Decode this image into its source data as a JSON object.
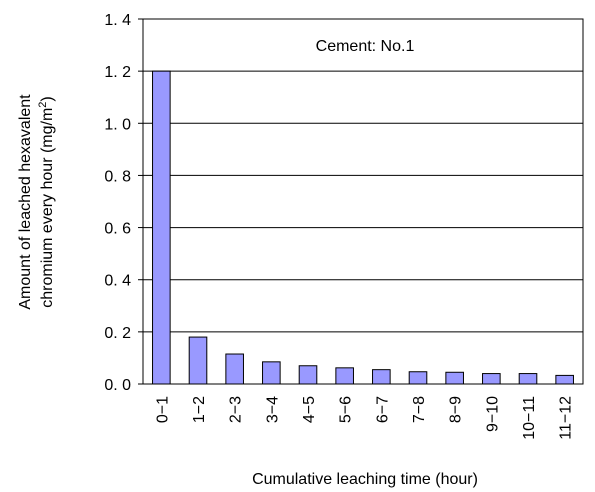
{
  "chart_data": {
    "type": "bar",
    "annotation": "Cement: No.1",
    "xlabel": "Cumulative leaching time (hour)",
    "ylabel_line1": "Amount of leached hexavalent",
    "ylabel_line2": "chromium   every hour (mg/m",
    "ylabel_sup": "2",
    "ylabel_end": ")",
    "categories": [
      "0−1",
      "1−2",
      "2−3",
      "3−4",
      "4−5",
      "5−6",
      "6−7",
      "7−8",
      "8−9",
      "9−10",
      "10−11",
      "11−12"
    ],
    "values": [
      1.2,
      0.18,
      0.115,
      0.085,
      0.07,
      0.062,
      0.055,
      0.047,
      0.045,
      0.04,
      0.04,
      0.033
    ],
    "color": "#9999ff",
    "ylim": [
      0,
      1.4
    ],
    "yticks": [
      {
        "value": 0,
        "label": "0. 0"
      },
      {
        "value": 0.2,
        "label": "0. 2"
      },
      {
        "value": 0.4,
        "label": "0. 4"
      },
      {
        "value": 0.6,
        "label": "0. 6"
      },
      {
        "value": 0.8,
        "label": "0. 8"
      },
      {
        "value": 1.0,
        "label": "1. 0"
      },
      {
        "value": 1.2,
        "label": "1. 2"
      },
      {
        "value": 1.4,
        "label": "1. 4"
      }
    ],
    "grid": true
  }
}
